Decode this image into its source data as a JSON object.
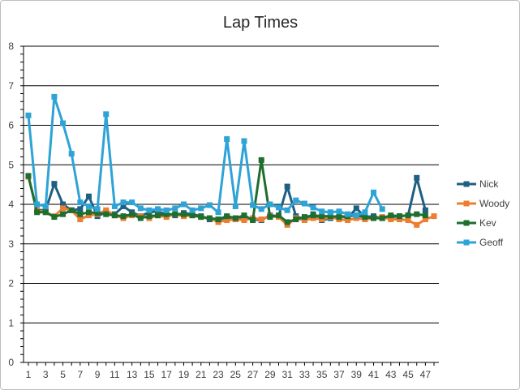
{
  "chart_data": {
    "type": "line",
    "title": "Lap Times",
    "xlabel": "",
    "ylabel": "",
    "ylim": [
      0,
      8
    ],
    "yticks": [
      0,
      1,
      2,
      3,
      4,
      5,
      6,
      7,
      8
    ],
    "xlim": [
      1,
      48
    ],
    "xticks": [
      1,
      3,
      5,
      7,
      9,
      11,
      13,
      15,
      17,
      19,
      21,
      23,
      25,
      27,
      29,
      31,
      33,
      35,
      37,
      39,
      41,
      43,
      45,
      47
    ],
    "grid": "horizontal",
    "legend_position": "right",
    "series": [
      {
        "name": "Nick",
        "color": "#1f5f84",
        "x": [
          1,
          2,
          3,
          4,
          5,
          6,
          7,
          8,
          9,
          10,
          11,
          12,
          13,
          14,
          15,
          16,
          17,
          18,
          19,
          20,
          21,
          22,
          23,
          24,
          25,
          26,
          27,
          28,
          29,
          30,
          31,
          32,
          33,
          34,
          35,
          36,
          37,
          38,
          39,
          40,
          41,
          42,
          43,
          44,
          45,
          46,
          47
        ],
        "values": [
          4.7,
          3.85,
          3.85,
          4.52,
          4.0,
          3.85,
          3.88,
          4.2,
          3.7,
          3.8,
          3.75,
          3.95,
          3.8,
          3.7,
          3.8,
          3.82,
          3.75,
          3.72,
          3.78,
          3.75,
          3.7,
          3.62,
          3.6,
          3.68,
          3.62,
          3.65,
          3.62,
          3.6,
          3.72,
          3.7,
          4.45,
          3.7,
          3.62,
          3.75,
          3.6,
          3.65,
          3.72,
          3.65,
          3.9,
          3.68,
          3.7,
          3.65,
          3.68,
          3.7,
          3.72,
          4.67,
          3.85
        ]
      },
      {
        "name": "Woody",
        "color": "#ed7d31",
        "x": [
          1,
          2,
          3,
          4,
          5,
          6,
          7,
          8,
          9,
          10,
          11,
          12,
          13,
          14,
          15,
          16,
          17,
          18,
          19,
          20,
          21,
          22,
          23,
          24,
          25,
          26,
          27,
          28,
          29,
          30,
          31,
          32,
          33,
          34,
          35,
          36,
          37,
          38,
          39,
          40,
          41,
          42,
          43,
          44,
          45,
          46,
          47,
          48
        ],
        "values": [
          4.7,
          3.85,
          3.8,
          3.7,
          3.9,
          3.85,
          3.62,
          3.72,
          3.75,
          3.85,
          3.72,
          3.65,
          3.72,
          3.7,
          3.65,
          3.72,
          3.68,
          3.75,
          3.7,
          3.72,
          3.68,
          3.65,
          3.55,
          3.6,
          3.62,
          3.6,
          3.65,
          3.62,
          3.7,
          3.68,
          3.48,
          3.65,
          3.6,
          3.65,
          3.62,
          3.68,
          3.62,
          3.6,
          3.65,
          3.62,
          3.65,
          3.68,
          3.62,
          3.62,
          3.6,
          3.48,
          3.62,
          3.7
        ]
      },
      {
        "name": "Kev",
        "color": "#1e6e2e",
        "x": [
          1,
          2,
          3,
          4,
          5,
          6,
          7,
          8,
          9,
          10,
          11,
          12,
          13,
          14,
          15,
          16,
          17,
          18,
          19,
          20,
          21,
          22,
          23,
          24,
          25,
          26,
          27,
          28,
          29,
          30,
          31,
          32,
          33,
          34,
          35,
          36,
          37,
          38,
          39,
          40,
          41,
          42,
          43,
          44,
          45,
          46,
          47
        ],
        "values": [
          4.72,
          3.8,
          3.8,
          3.68,
          3.75,
          3.85,
          3.75,
          3.8,
          3.78,
          3.75,
          3.72,
          3.7,
          3.75,
          3.65,
          3.7,
          3.72,
          3.75,
          3.75,
          3.75,
          3.72,
          3.68,
          3.65,
          3.62,
          3.7,
          3.65,
          3.72,
          3.6,
          5.12,
          3.68,
          3.72,
          3.55,
          3.62,
          3.68,
          3.72,
          3.7,
          3.7,
          3.68,
          3.7,
          3.72,
          3.68,
          3.65,
          3.65,
          3.72,
          3.7,
          3.72,
          3.75,
          3.72
        ]
      },
      {
        "name": "Geoff",
        "color": "#2ea3d6",
        "x": [
          1,
          2,
          3,
          4,
          5,
          6,
          7,
          8,
          9,
          10,
          11,
          12,
          13,
          14,
          15,
          16,
          17,
          18,
          19,
          20,
          21,
          22,
          23,
          24,
          25,
          26,
          27,
          28,
          29,
          30,
          31,
          32,
          33,
          34,
          35,
          36,
          37,
          38,
          39,
          40,
          41,
          42
        ],
        "values": [
          6.25,
          4.0,
          3.95,
          6.72,
          6.05,
          5.28,
          4.05,
          3.95,
          3.88,
          6.28,
          3.95,
          4.05,
          4.05,
          3.9,
          3.85,
          3.88,
          3.85,
          3.9,
          4.0,
          3.85,
          3.9,
          3.98,
          3.8,
          5.65,
          3.95,
          5.6,
          3.98,
          3.88,
          4.0,
          3.92,
          3.85,
          4.1,
          4.02,
          3.92,
          3.82,
          3.8,
          3.82,
          3.75,
          3.72,
          3.8,
          4.3,
          3.88
        ]
      }
    ]
  }
}
